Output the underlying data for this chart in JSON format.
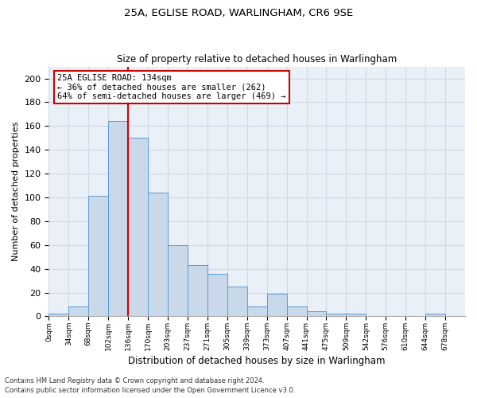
{
  "title1": "25A, EGLISE ROAD, WARLINGHAM, CR6 9SE",
  "title2": "Size of property relative to detached houses in Warlingham",
  "xlabel": "Distribution of detached houses by size in Warlingham",
  "ylabel": "Number of detached properties",
  "footnote1": "Contains HM Land Registry data © Crown copyright and database right 2024.",
  "footnote2": "Contains public sector information licensed under the Open Government Licence v3.0.",
  "bin_labels": [
    "0sqm",
    "34sqm",
    "68sqm",
    "102sqm",
    "136sqm",
    "170sqm",
    "203sqm",
    "237sqm",
    "271sqm",
    "305sqm",
    "339sqm",
    "373sqm",
    "407sqm",
    "441sqm",
    "475sqm",
    "509sqm",
    "542sqm",
    "576sqm",
    "610sqm",
    "644sqm",
    "678sqm"
  ],
  "bar_heights": [
    2,
    8,
    101,
    164,
    150,
    104,
    60,
    43,
    36,
    25,
    8,
    19,
    8,
    4,
    2,
    2,
    0,
    0,
    0,
    2,
    0
  ],
  "bar_color": "#c9d9ea",
  "bar_edge_color": "#5b9bd5",
  "ylim": [
    0,
    210
  ],
  "yticks": [
    0,
    20,
    40,
    60,
    80,
    100,
    120,
    140,
    160,
    180,
    200
  ],
  "ref_line_x": 4.0,
  "annotation_text": "25A EGLISE ROAD: 134sqm\n← 36% of detached houses are smaller (262)\n64% of semi-detached houses are larger (469) →",
  "annotation_box_color": "#ffffff",
  "annotation_box_edge_color": "#cc0000",
  "ref_line_color": "#cc0000",
  "grid_color": "#d0d8e8",
  "background_color": "#eaf0f8"
}
